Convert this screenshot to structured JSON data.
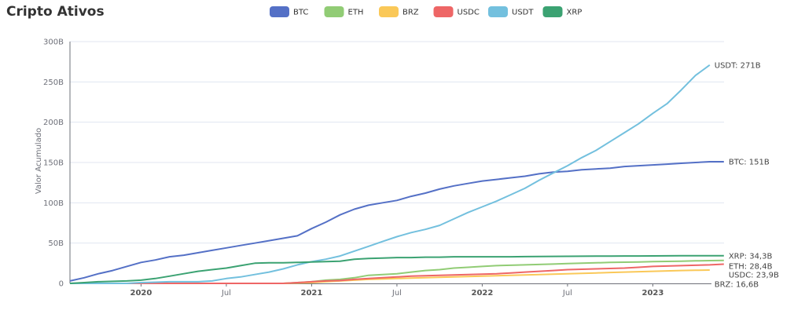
{
  "chart_data": {
    "type": "line",
    "title": "Cripto Ativos",
    "ylabel": "Valor Acumulado",
    "xlabel": "",
    "ylim": [
      0,
      300
    ],
    "y_ticks": [
      "0",
      "50B",
      "100B",
      "150B",
      "200B",
      "250B",
      "300B"
    ],
    "y_tick_values": [
      0,
      50,
      100,
      150,
      200,
      250,
      300
    ],
    "x_start": "2019-08",
    "x_ticks": [
      {
        "label": "2020",
        "date": "2020-01",
        "year": true
      },
      {
        "label": "Jul",
        "date": "2020-07",
        "year": false
      },
      {
        "label": "2021",
        "date": "2021-01",
        "year": true
      },
      {
        "label": "Jul",
        "date": "2021-07",
        "year": false
      },
      {
        "label": "2022",
        "date": "2022-01",
        "year": true
      },
      {
        "label": "Jul",
        "date": "2022-07",
        "year": false
      },
      {
        "label": "2023",
        "date": "2023-01",
        "year": true
      }
    ],
    "grid": true,
    "legend_position": "top",
    "x_dates_monthly_from": "2019-08",
    "series": [
      {
        "name": "BTC",
        "color": "#5470c6",
        "end_label": "BTC: 151B",
        "values": [
          3,
          7,
          12,
          16,
          21,
          26,
          29,
          33,
          35,
          38,
          41,
          44,
          47,
          50,
          53,
          56,
          59,
          68,
          76,
          85,
          92,
          97,
          100,
          103,
          108,
          112,
          117,
          121,
          124,
          127,
          129,
          131,
          133,
          136,
          138,
          139,
          141,
          142,
          143,
          145,
          146,
          147,
          148,
          149,
          150,
          151,
          151
        ]
      },
      {
        "name": "ETH",
        "color": "#91cc75",
        "end_label": "ETH: 28,4B",
        "values": [
          0,
          0,
          0,
          0,
          0,
          0,
          0,
          0,
          0,
          0,
          0,
          0,
          0,
          0,
          0,
          0,
          1,
          2,
          4,
          5,
          7,
          10,
          11,
          12,
          14,
          16,
          17,
          19,
          20,
          21,
          22,
          22.5,
          23,
          23.5,
          24,
          24.5,
          25,
          25.5,
          26,
          26.3,
          26.6,
          27,
          27.3,
          27.6,
          28,
          28.2,
          28.4
        ]
      },
      {
        "name": "BRZ",
        "color": "#fac858",
        "end_label": "BRZ: 16,6B",
        "values": [
          0,
          0,
          0,
          0,
          0,
          0,
          0,
          0,
          0,
          0,
          0,
          0,
          0,
          0,
          0,
          0,
          0.5,
          1,
          2,
          3,
          4,
          5,
          5.5,
          6,
          6.5,
          7,
          7.5,
          8,
          8.5,
          9,
          9.5,
          10,
          10.5,
          11,
          11.5,
          12,
          12.5,
          13,
          13.5,
          14,
          14.5,
          15,
          15.5,
          16,
          16.3,
          16.6,
          null
        ]
      },
      {
        "name": "USDC",
        "color": "#ee6666",
        "end_label": "USDC: 23,9B",
        "values": [
          0,
          0,
          0,
          0,
          0,
          0,
          0,
          0,
          0,
          0,
          0,
          0,
          0,
          0,
          0,
          0,
          1,
          2,
          3,
          3.5,
          5,
          6,
          7,
          8,
          9,
          9.5,
          10,
          10.5,
          11,
          11.5,
          12,
          13,
          14,
          15,
          16,
          17,
          17.5,
          18,
          18.5,
          19,
          20,
          21,
          21.5,
          22,
          22.5,
          23,
          23.9
        ]
      },
      {
        "name": "USDT",
        "color": "#73c0de",
        "end_label": "USDT: 271B",
        "values": [
          0,
          0,
          0,
          0,
          0,
          1,
          1.5,
          2,
          2,
          2,
          3,
          6,
          8,
          11,
          14,
          18,
          23,
          27,
          30,
          34,
          40,
          46,
          52,
          58,
          63,
          67,
          72,
          80,
          88,
          95,
          102,
          110,
          118,
          128,
          137,
          146,
          156,
          165,
          176,
          187,
          198,
          211,
          223,
          240,
          258,
          271,
          null
        ]
      },
      {
        "name": "XRP",
        "color": "#3ba272",
        "end_label": "XRP: 34,3B",
        "values": [
          0,
          1,
          2,
          2.5,
          3,
          4,
          6,
          9,
          12,
          15,
          17,
          19,
          22,
          25,
          25.5,
          25.5,
          26,
          26.5,
          27,
          27.5,
          30,
          31,
          31.5,
          32,
          32,
          32.5,
          32.5,
          33,
          33,
          33,
          33,
          33,
          33.2,
          33.3,
          33.5,
          33.6,
          33.7,
          33.8,
          33.9,
          34,
          34,
          34.1,
          34.2,
          34.3,
          34.3,
          34.3,
          34.3
        ]
      }
    ]
  }
}
